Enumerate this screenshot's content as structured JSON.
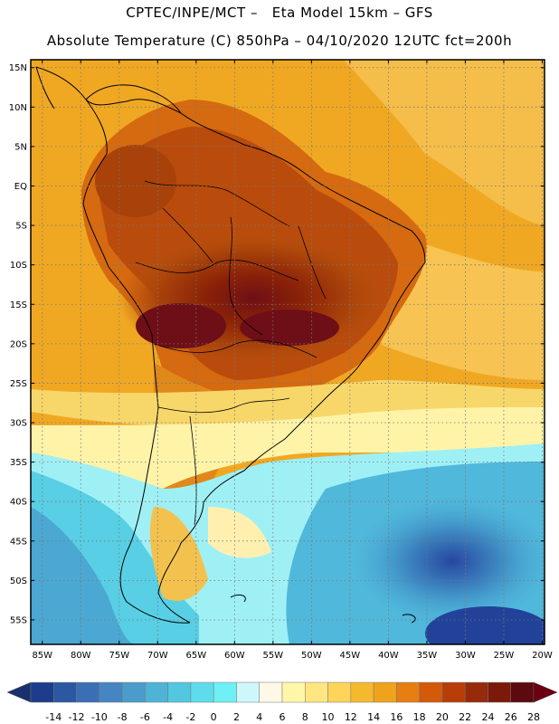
{
  "header": {
    "line1": "CPTEC/INPE/MCT –   Eta Model 15km – GFS",
    "line2": "Absolute Temperature (C) 850hPa – 04/10/2020 12UTC fct=200h"
  },
  "axes": {
    "lat_labels": [
      "15N",
      "10N",
      "5N",
      "EQ",
      "5S",
      "10S",
      "15S",
      "20S",
      "25S",
      "30S",
      "35S",
      "40S",
      "45S",
      "50S",
      "55S"
    ],
    "lon_labels": [
      "85W",
      "80W",
      "75W",
      "70W",
      "65W",
      "60W",
      "55W",
      "50W",
      "45W",
      "40W",
      "35W",
      "30W",
      "25W",
      "20W"
    ],
    "lat_values": [
      15,
      10,
      5,
      0,
      -5,
      -10,
      -15,
      -20,
      -25,
      -30,
      -35,
      -40,
      -45,
      -50,
      -55
    ],
    "lon_values": [
      -85,
      -80,
      -75,
      -70,
      -65,
      -60,
      -55,
      -50,
      -45,
      -40,
      -35,
      -30,
      -25,
      -20
    ]
  },
  "colorbar": {
    "labels": [
      "-14",
      "-12",
      "-10",
      "-8",
      "-6",
      "-4",
      "-2",
      "0",
      "2",
      "4",
      "6",
      "8",
      "10",
      "12",
      "14",
      "16",
      "18",
      "20",
      "22",
      "24",
      "26",
      "28"
    ],
    "colors": [
      "#1e3c8c",
      "#2b57a3",
      "#3a6fb5",
      "#4586c2",
      "#4b9ccb",
      "#4fb3d6",
      "#53c7e0",
      "#5fdcec",
      "#6ef0f5",
      "#cdf7fb",
      "#fff8e6",
      "#fff7a8",
      "#ffe680",
      "#ffd45a",
      "#f5b82e",
      "#eea21d",
      "#e67e12",
      "#d25a0a",
      "#b73e08",
      "#962a0a",
      "#7b1a0a",
      "#5c0a0e"
    ],
    "under_color": "#1a2f6e",
    "over_color": "#6a0010"
  }
}
